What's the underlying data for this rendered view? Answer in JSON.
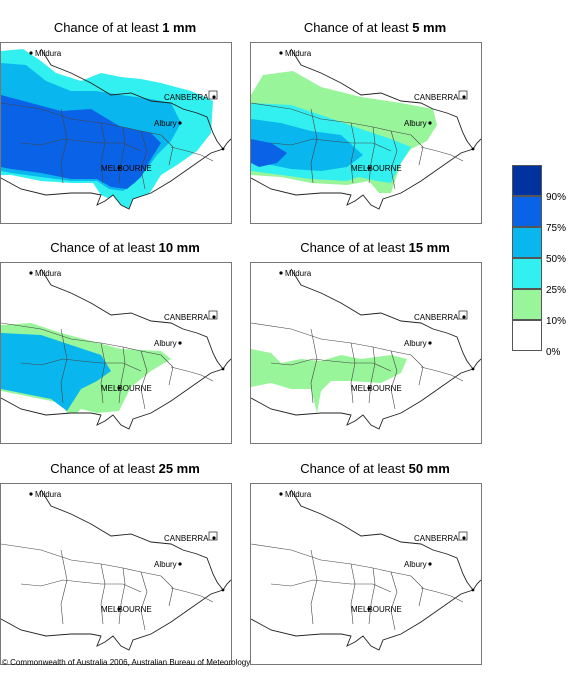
{
  "panels": [
    {
      "prefix": "Chance of at least ",
      "amount": "1 mm",
      "level": 0
    },
    {
      "prefix": "Chance of at least ",
      "amount": "5 mm",
      "level": 1
    },
    {
      "prefix": "Chance of at least ",
      "amount": "10 mm",
      "level": 2
    },
    {
      "prefix": "Chance of at least ",
      "amount": "15 mm",
      "level": 3
    },
    {
      "prefix": "Chance of at least ",
      "amount": "25 mm",
      "level": 4
    },
    {
      "prefix": "Chance of at least ",
      "amount": "50 mm",
      "level": 5
    }
  ],
  "places": [
    "Mildura",
    "CANBERRA",
    "Albury",
    "MELBOURNE"
  ],
  "legend": {
    "labels": [
      "90%",
      "75%",
      "50%",
      "25%",
      "10%",
      "0%"
    ],
    "colors": [
      "#0033a0",
      "#0a63e6",
      "#09b7ee",
      "#33f0f0",
      "#99f599",
      "#ffffff"
    ]
  },
  "copyright": "© Commonwealth of Australia 2006, Australian Bureau of Meteorology"
}
